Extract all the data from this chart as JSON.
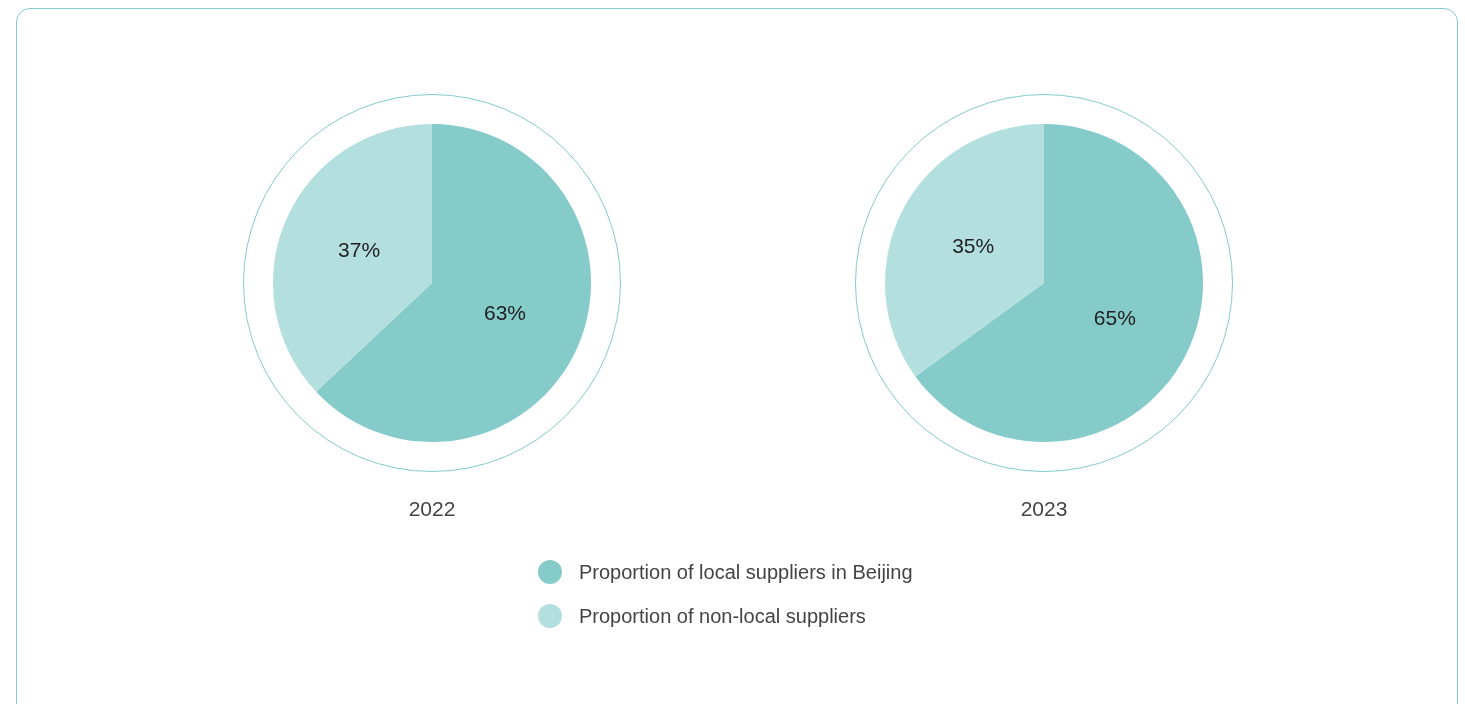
{
  "chart_data": [
    {
      "type": "pie",
      "title": "2022",
      "categories": [
        "Proportion of local suppliers in Beijing",
        "Proportion of non-local suppliers"
      ],
      "values": [
        63,
        37
      ],
      "colors": [
        "#85cbca",
        "#b3dfde"
      ],
      "value_labels": [
        "63%",
        "37%"
      ],
      "legend": "bottom"
    },
    {
      "type": "pie",
      "title": "2023",
      "categories": [
        null,
        null
      ],
      "values": [
        65,
        35
      ],
      "colors": [
        "#85cbca",
        "#b3dfde"
      ],
      "value_labels": [
        "65%",
        "35%"
      ]
    }
  ]
}
